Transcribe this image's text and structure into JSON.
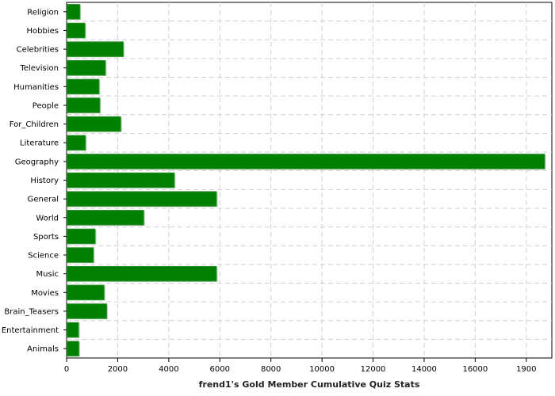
{
  "chart_data": {
    "type": "bar",
    "orientation": "horizontal",
    "title": "",
    "xlabel": "frend1's Gold Member Cumulative Quiz Stats",
    "ylabel": "",
    "categories": [
      "Religion",
      "Hobbies",
      "Celebrities",
      "Television",
      "Humanities",
      "People",
      "For_Children",
      "Literature",
      "Geography",
      "History",
      "General",
      "World",
      "Sports",
      "Science",
      "Music",
      "Movies",
      "Brain_Teasers",
      "Entertainment",
      "Animals"
    ],
    "values": [
      500,
      700,
      2200,
      1500,
      1250,
      1280,
      2100,
      720,
      18700,
      4200,
      5850,
      3000,
      1100,
      1030,
      5850,
      1450,
      1550,
      450,
      460
    ],
    "xlim": [
      0,
      19000
    ],
    "xticks": [
      "0",
      "2000",
      "4000",
      "6000",
      "8000",
      "10000",
      "12000",
      "14000",
      "16000",
      "1900"
    ],
    "grid": true,
    "bar_color": "#008000"
  }
}
